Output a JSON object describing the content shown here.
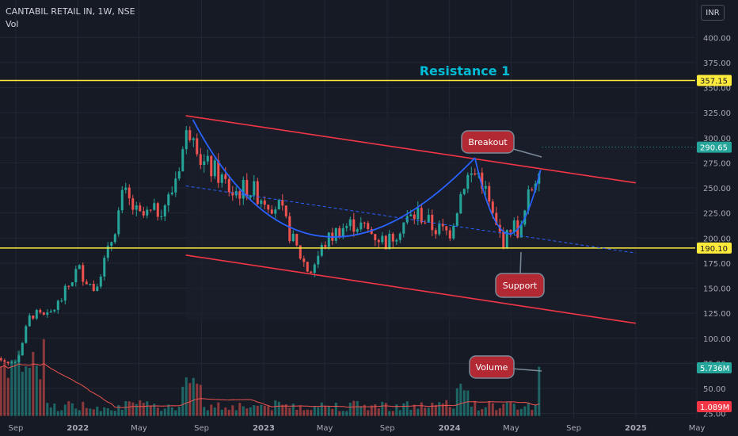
{
  "header": {
    "symbol": "CANTABIL RETAIL IN, 1W, NSE",
    "volume_label": "Vol",
    "currency_button": "INR"
  },
  "colors": {
    "background": "#161a25",
    "grid": "#232734",
    "up": "#26a69a",
    "down": "#ef5350",
    "level_line": "#ffeb3b",
    "channel": "#f23645",
    "cup_curve": "#2962ff",
    "label_fill": "#b22833",
    "label_stroke": "#7a8a99",
    "resistance_text": "#00bcd4",
    "axis_text": "#a6a9b3"
  },
  "chart_data": {
    "type": "candlestick",
    "title": "CANTABIL RETAIL IN, 1W, NSE",
    "y_axis": {
      "ticks": [
        25,
        50,
        75,
        100,
        125,
        150,
        175,
        200,
        225,
        250,
        275,
        300,
        325,
        350,
        375,
        400
      ],
      "tick_labels": [
        "25.00",
        "50.00",
        "75.00",
        "100.00",
        "125.00",
        "150.00",
        "175.00",
        "200.00",
        "225.00",
        "250.00",
        "275.00",
        "300.00",
        "325.00",
        "350.00",
        "375.00",
        "400.00"
      ],
      "ylim": [
        20,
        420
      ]
    },
    "x_axis": {
      "labels": [
        "Sep",
        "2022",
        "May",
        "Sep",
        "2023",
        "May",
        "Sep",
        "2024",
        "May",
        "Sep",
        "2025",
        "May"
      ],
      "label_dates": [
        "2021-09",
        "2022-01",
        "2022-05",
        "2022-09",
        "2023-01",
        "2023-05",
        "2023-09",
        "2024-01",
        "2024-05",
        "2024-09",
        "2025-01",
        "2025-05"
      ],
      "range": [
        "2021-08",
        "2025-06"
      ]
    },
    "horizontal_levels": [
      {
        "price": 357.15,
        "label": "357.15"
      },
      {
        "price": 190.1,
        "label": "190.10"
      }
    ],
    "price_badges": [
      {
        "value": 290.65,
        "label": "290.65",
        "color": "#26a69a"
      },
      {
        "value": 5.736,
        "label": "5.736M",
        "color": "#26a69a"
      },
      {
        "value": 1.089,
        "label": "1.089M",
        "color": "#f23645"
      }
    ],
    "trend_channel": {
      "upper": [
        [
          "2022-08-01",
          322
        ],
        [
          "2025-01-01",
          255
        ]
      ],
      "lower": [
        [
          "2022-08-01",
          183
        ],
        [
          "2025-01-01",
          115
        ]
      ],
      "midline": [
        [
          "2022-08-01",
          252
        ],
        [
          "2025-01-01",
          185
        ]
      ]
    },
    "annotations": [
      {
        "text": "Resistance 1",
        "x": "2024-02",
        "y": 375
      },
      {
        "text": "Breakout",
        "x": "2024-04",
        "y": 300
      },
      {
        "text": "Support",
        "x": "2024-06",
        "y": 160
      },
      {
        "text": "Volume",
        "x": "2024-04",
        "y": 75
      }
    ],
    "close_points": [
      [
        "2021-08-01",
        80
      ],
      [
        "2021-09-01",
        75
      ],
      [
        "2021-10-01",
        125
      ],
      [
        "2021-11-01",
        120
      ],
      [
        "2021-12-01",
        140
      ],
      [
        "2022-01-01",
        170
      ],
      [
        "2022-02-01",
        150
      ],
      [
        "2022-03-01",
        185
      ],
      [
        "2022-04-01",
        245
      ],
      [
        "2022-05-01",
        220
      ],
      [
        "2022-06-01",
        225
      ],
      [
        "2022-07-01",
        240
      ],
      [
        "2022-08-01",
        300
      ],
      [
        "2022-08-15",
        315
      ],
      [
        "2022-09-01",
        275
      ],
      [
        "2022-10-01",
        265
      ],
      [
        "2022-11-01",
        245
      ],
      [
        "2022-12-01",
        250
      ],
      [
        "2023-01-01",
        240
      ],
      [
        "2023-02-01",
        230
      ],
      [
        "2023-03-01",
        195
      ],
      [
        "2023-04-01",
        165
      ],
      [
        "2023-05-01",
        195
      ],
      [
        "2023-06-01",
        210
      ],
      [
        "2023-07-01",
        215
      ],
      [
        "2023-08-01",
        205
      ],
      [
        "2023-09-01",
        195
      ],
      [
        "2023-10-01",
        215
      ],
      [
        "2023-11-01",
        225
      ],
      [
        "2023-12-01",
        210
      ],
      [
        "2024-01-01",
        205
      ],
      [
        "2024-02-01",
        260
      ],
      [
        "2024-03-01",
        265
      ],
      [
        "2024-04-01",
        210
      ],
      [
        "2024-04-20",
        195
      ],
      [
        "2024-05-01",
        215
      ],
      [
        "2024-05-20",
        205
      ],
      [
        "2024-06-01",
        235
      ],
      [
        "2024-06-20",
        265
      ],
      [
        "2024-07-01",
        290.65
      ]
    ],
    "volume_moving_average": true
  }
}
